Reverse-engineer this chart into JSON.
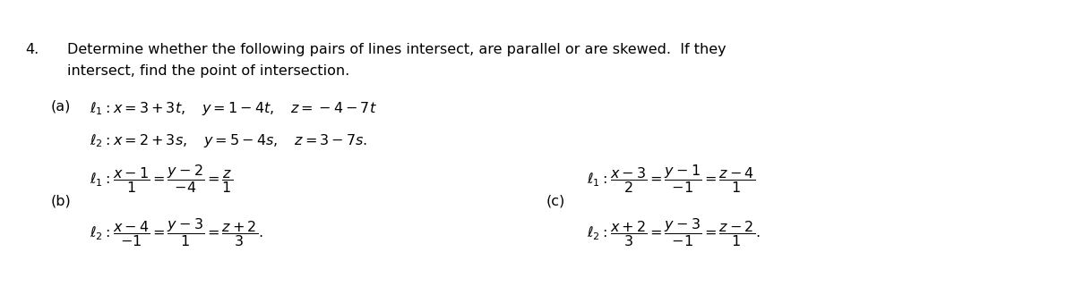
{
  "bg_color": "#ffffff",
  "fig_width": 12.0,
  "fig_height": 3.2,
  "dpi": 100,
  "font_size": 11.5
}
